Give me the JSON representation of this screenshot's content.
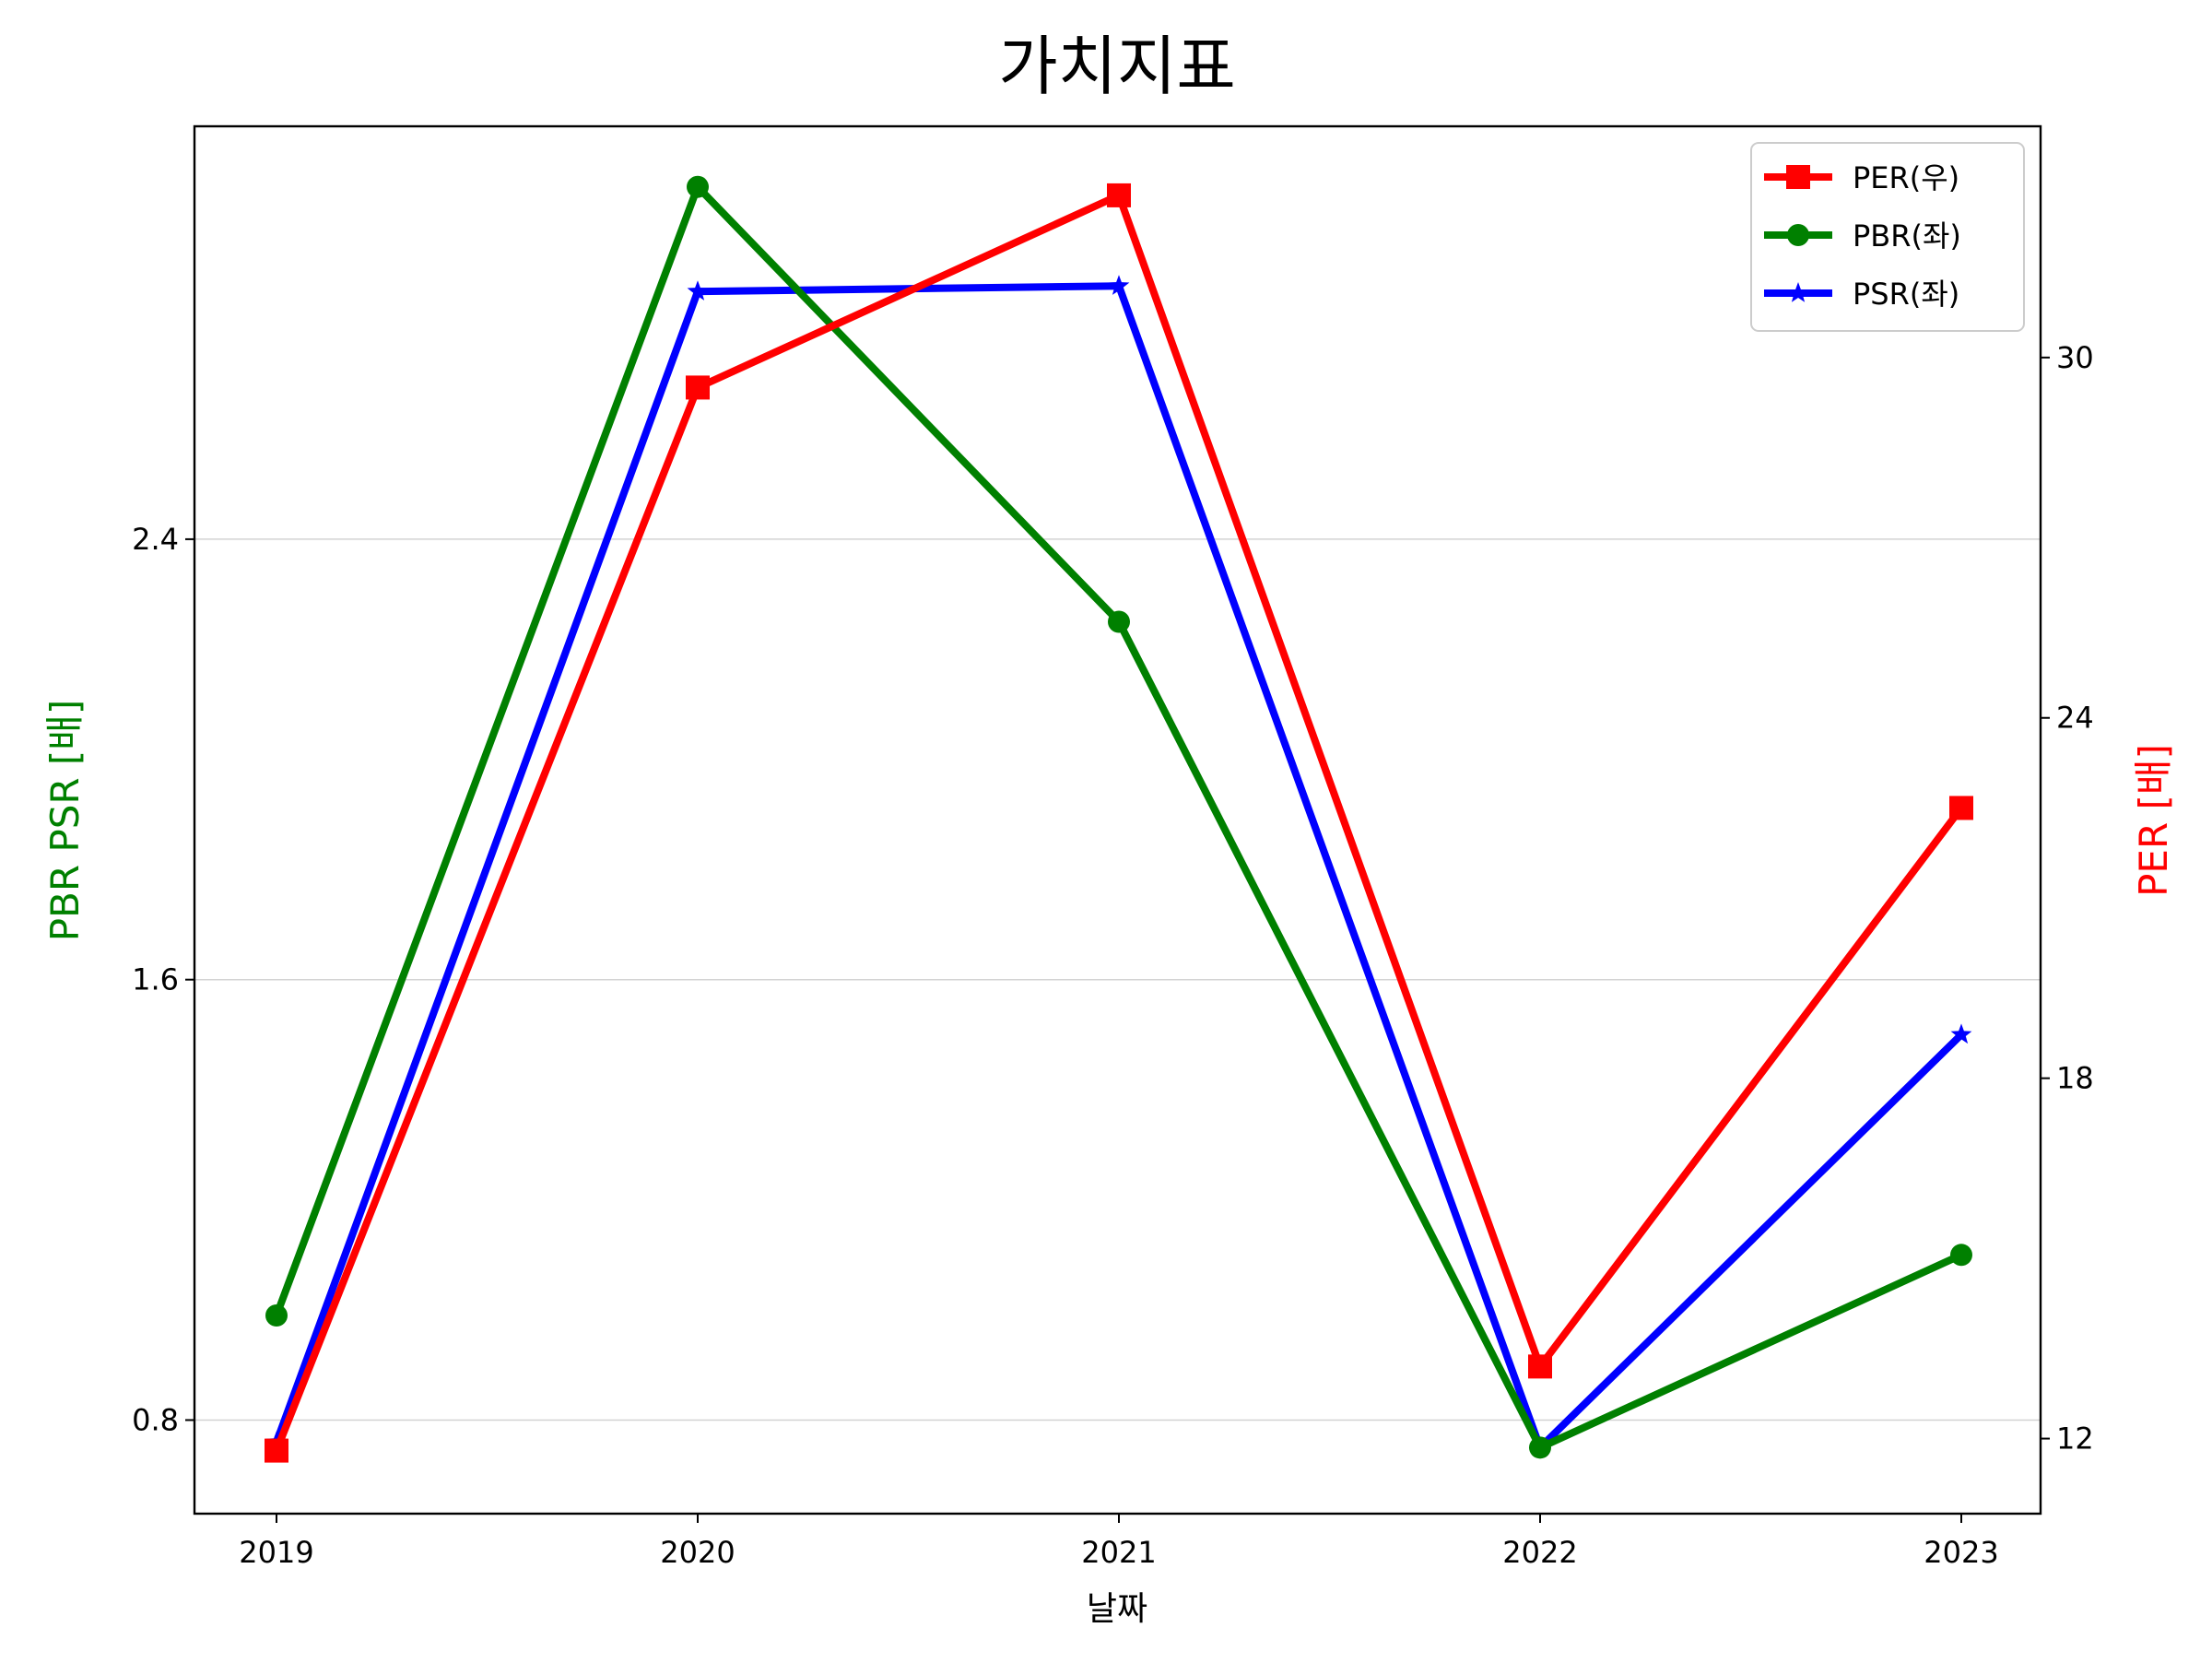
{
  "chart_data": {
    "type": "line",
    "title": "가치지표",
    "xlabel": "날짜",
    "ylabel_left": "PBR PSR [배]",
    "ylabel_right": "PER [배]",
    "categories": [
      "2019",
      "2020",
      "2021",
      "2022",
      "2023"
    ],
    "left_axis": {
      "ylim": [
        0.63,
        3.15
      ],
      "ticks": [
        0.8,
        1.6,
        2.4
      ],
      "tick_labels": [
        "0.8",
        "1.6",
        "2.4"
      ],
      "grid": true
    },
    "right_axis": {
      "ylim": [
        10.75,
        33.85
      ],
      "ticks": [
        12,
        18,
        24,
        30
      ],
      "tick_labels": [
        "12",
        "18",
        "24",
        "30"
      ]
    },
    "legend_position": "top-right",
    "series": [
      {
        "name": "PER(우)",
        "axis": "right",
        "color": "#ff0000",
        "marker": "square",
        "values": [
          11.8,
          29.5,
          32.7,
          13.2,
          22.5
        ]
      },
      {
        "name": "PBR(좌)",
        "axis": "left",
        "color": "#008000",
        "marker": "circle",
        "values": [
          0.99,
          3.04,
          2.25,
          0.75,
          1.1
        ]
      },
      {
        "name": "PSR(좌)",
        "axis": "left",
        "color": "#0000ff",
        "marker": "star",
        "values": [
          0.76,
          2.85,
          2.86,
          0.75,
          1.5
        ]
      }
    ]
  }
}
